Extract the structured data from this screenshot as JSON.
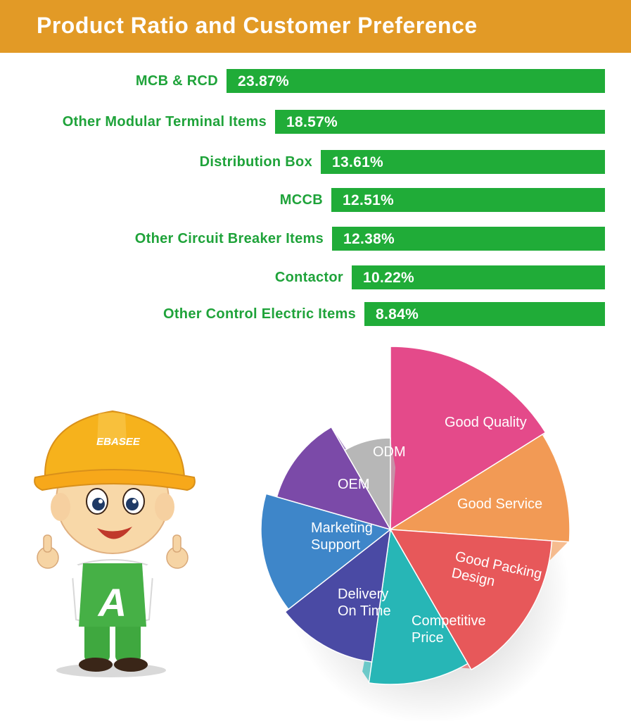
{
  "header": {
    "title": "Product Ratio and Customer Preference"
  },
  "chart_data": [
    {
      "type": "bar",
      "orientation": "horizontal",
      "categories": [
        "MCB & RCD",
        "Other Modular Terminal Items",
        "Distribution Box",
        "MCCB",
        "Other Circuit Breaker Items",
        "Contactor",
        "Other Control Electric Items"
      ],
      "values": [
        23.87,
        18.57,
        13.61,
        12.51,
        12.38,
        10.22,
        8.84
      ],
      "value_labels": [
        "23.87%",
        "18.57%",
        "13.61%",
        "12.51%",
        "12.38%",
        "10.22%",
        "8.84%"
      ],
      "unit": "%",
      "colors": {
        "bar": "#20ac38",
        "label": "#1fa33a",
        "value": "#ffffff"
      }
    },
    {
      "type": "pie",
      "style": "exploded-3d",
      "segments": [
        {
          "label": "Good Quality",
          "lines": [
            "Good Quality"
          ],
          "color": "#e44a8a"
        },
        {
          "label": "Good Service",
          "lines": [
            "Good Service"
          ],
          "color": "#f29a55"
        },
        {
          "label": "Good Packing Design",
          "lines": [
            "Good Packing",
            "Design"
          ],
          "color": "#e7585a"
        },
        {
          "label": "Competitive Price",
          "lines": [
            "Competitive",
            "Price"
          ],
          "color": "#27b6b6"
        },
        {
          "label": "Delivery On Time",
          "lines": [
            "Delivery",
            "On Time"
          ],
          "color": "#4a4aa4"
        },
        {
          "label": "Marketing Support",
          "lines": [
            "Marketing",
            "Support"
          ],
          "color": "#3e86c9"
        },
        {
          "label": "OEM",
          "lines": [
            "OEM"
          ],
          "color": "#7b4aa8"
        },
        {
          "label": "ODM",
          "lines": [
            "ODM"
          ],
          "color": "#b7b7b7"
        }
      ]
    }
  ],
  "mascot": {
    "helmet_text": "EBASEE",
    "apron_letter": "A"
  }
}
